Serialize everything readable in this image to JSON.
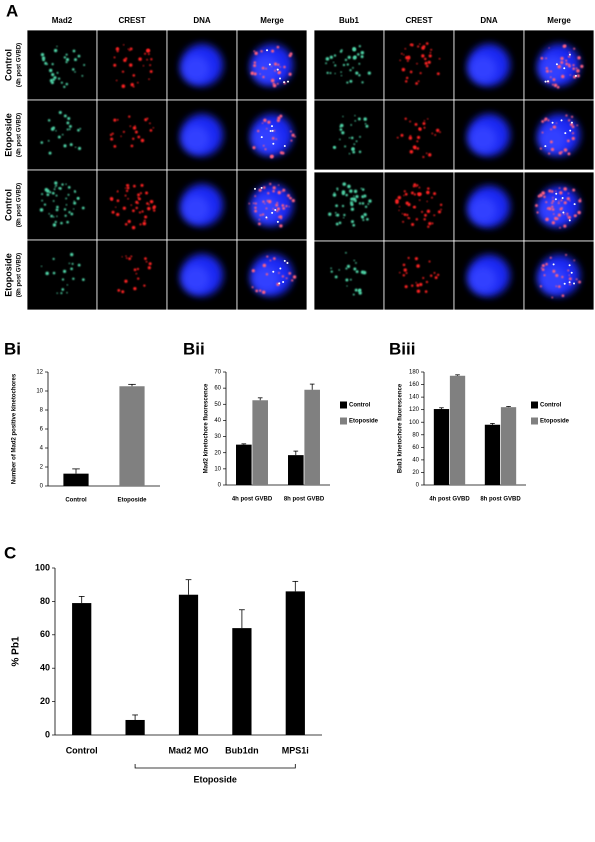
{
  "panel_a": {
    "label": "A",
    "left_columns": [
      "Mad2",
      "CREST",
      "DNA",
      "Merge"
    ],
    "right_columns": [
      "Bub1",
      "CREST",
      "DNA",
      "Merge"
    ],
    "rows": [
      {
        "name": "Control",
        "time": "(4h post GVBD)"
      },
      {
        "name": "Etoposide",
        "time": "(4h post GVBD)"
      },
      {
        "name": "Control",
        "time": "(8h post GVBD)"
      },
      {
        "name": "Etoposide",
        "time": "(8h post GVBD)"
      }
    ]
  },
  "chart_data": [
    {
      "type": "bar",
      "title": "Bi",
      "y_label": "Number of Mad2 positive kinetochores",
      "categories": [
        "Control",
        "Etoposide"
      ],
      "values": [
        1.3,
        10.5
      ],
      "errors": [
        0.5,
        0.2
      ],
      "colors": [
        "#000000",
        "#808080"
      ],
      "ylim": [
        0,
        12
      ],
      "yticks": [
        0,
        2,
        4,
        6,
        8,
        10,
        12
      ]
    },
    {
      "type": "bar",
      "title": "Bii",
      "y_label": "Mad2 kinetochore fluorescence",
      "categories": [
        "4h post GVBD",
        "8h post GVBD"
      ],
      "series": [
        {
          "name": "Control",
          "color": "#000000",
          "values": [
            25,
            18.5
          ],
          "errors": [
            0.5,
            2.5
          ]
        },
        {
          "name": "Etoposide",
          "color": "#808080",
          "values": [
            52.5,
            59
          ],
          "errors": [
            1.5,
            3.5
          ]
        }
      ],
      "ylim": [
        0,
        70
      ],
      "yticks": [
        0,
        10,
        20,
        30,
        40,
        50,
        60,
        70
      ]
    },
    {
      "type": "bar",
      "title": "Biii",
      "y_label": "Bub1 kinetochore fluorescence",
      "categories": [
        "4h post GVBD",
        "8h post GVBD"
      ],
      "series": [
        {
          "name": "Control",
          "color": "#000000",
          "values": [
            121,
            96
          ],
          "errors": [
            2,
            2
          ]
        },
        {
          "name": "Etoposide",
          "color": "#808080",
          "values": [
            174,
            124
          ],
          "errors": [
            1.5,
            1
          ]
        }
      ],
      "ylim": [
        0,
        180
      ],
      "yticks": [
        0,
        20,
        40,
        60,
        80,
        100,
        120,
        140,
        160,
        180
      ]
    },
    {
      "type": "bar",
      "title": "C",
      "y_label": "% Pb1",
      "categories": [
        "Control",
        null,
        "Mad2 MO",
        "Bub1dn",
        "MPS1i"
      ],
      "values": [
        79,
        9,
        84,
        64,
        86
      ],
      "errors": [
        4,
        3,
        9,
        11,
        6
      ],
      "color": "#000000",
      "group_label": "Etoposide",
      "ylim": [
        0,
        100
      ],
      "yticks": [
        0,
        20,
        40,
        60,
        80,
        100
      ]
    }
  ]
}
